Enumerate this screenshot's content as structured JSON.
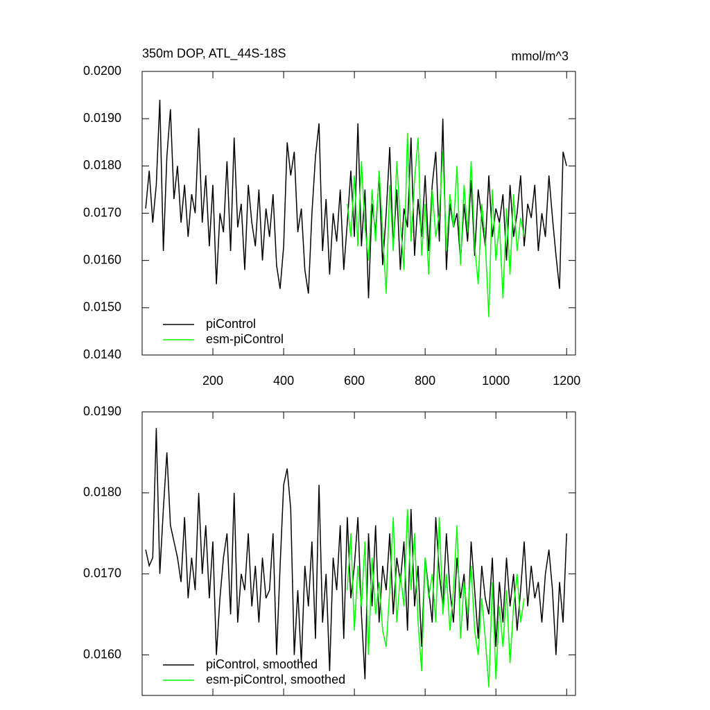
{
  "chart_data": [
    {
      "type": "line",
      "title": "350m DOP, ATL_44S-18S",
      "units": "mmol/m^3",
      "xlim": [
        0,
        1225
      ],
      "xticks": [
        200,
        400,
        600,
        800,
        1000,
        1200
      ],
      "ylim": [
        0.014,
        0.02
      ],
      "yticks": [
        {
          "value": 0.014,
          "label": "0.0140"
        },
        {
          "value": 0.015,
          "label": "0.0150"
        },
        {
          "value": 0.016,
          "label": "0.0160"
        },
        {
          "value": 0.017,
          "label": "0.0170"
        },
        {
          "value": 0.018,
          "label": "0.0180"
        },
        {
          "value": 0.019,
          "label": "0.0190"
        },
        {
          "value": 0.02,
          "label": "0.0200"
        }
      ],
      "legend": "lower left",
      "series": [
        {
          "name": "piControl",
          "color": "#000000",
          "x": [
            10,
            20,
            30,
            40,
            50,
            60,
            70,
            80,
            90,
            100,
            110,
            120,
            130,
            140,
            150,
            160,
            170,
            180,
            190,
            200,
            210,
            220,
            230,
            240,
            250,
            260,
            270,
            280,
            290,
            300,
            310,
            320,
            330,
            340,
            350,
            360,
            370,
            380,
            390,
            400,
            410,
            420,
            430,
            440,
            450,
            460,
            470,
            480,
            490,
            500,
            510,
            520,
            530,
            540,
            550,
            560,
            570,
            580,
            590,
            600,
            610,
            620,
            630,
            640,
            650,
            660,
            670,
            680,
            690,
            700,
            710,
            720,
            730,
            740,
            750,
            760,
            770,
            780,
            790,
            800,
            810,
            820,
            830,
            840,
            850,
            860,
            870,
            880,
            890,
            900,
            910,
            920,
            930,
            940,
            950,
            960,
            970,
            980,
            990,
            1000,
            1010,
            1020,
            1030,
            1040,
            1050,
            1060,
            1070,
            1080,
            1090,
            1100,
            1110,
            1120,
            1130,
            1140,
            1150,
            1160,
            1170,
            1180,
            1190,
            1200
          ],
          "values": [
            0.0171,
            0.0179,
            0.0168,
            0.0176,
            0.0194,
            0.0162,
            0.0182,
            0.0192,
            0.0173,
            0.018,
            0.0168,
            0.0176,
            0.0165,
            0.0174,
            0.017,
            0.0188,
            0.0168,
            0.0178,
            0.0163,
            0.0176,
            0.0155,
            0.017,
            0.0166,
            0.0181,
            0.0162,
            0.0186,
            0.0167,
            0.0172,
            0.0158,
            0.0176,
            0.0168,
            0.0163,
            0.0175,
            0.016,
            0.0171,
            0.0165,
            0.0174,
            0.0159,
            0.0154,
            0.0163,
            0.0185,
            0.0178,
            0.0183,
            0.0166,
            0.0171,
            0.0158,
            0.0153,
            0.017,
            0.0182,
            0.0189,
            0.0162,
            0.0173,
            0.0157,
            0.017,
            0.0164,
            0.0175,
            0.0158,
            0.0168,
            0.0179,
            0.0165,
            0.0189,
            0.0163,
            0.0175,
            0.0152,
            0.0172,
            0.0166,
            0.0178,
            0.0159,
            0.017,
            0.0184,
            0.0163,
            0.0175,
            0.0158,
            0.0171,
            0.0167,
            0.0186,
            0.0161,
            0.0173,
            0.0165,
            0.0178,
            0.0162,
            0.0176,
            0.0183,
            0.0164,
            0.019,
            0.0158,
            0.0172,
            0.0167,
            0.017,
            0.016,
            0.0172,
            0.0164,
            0.0177,
            0.0161,
            0.0175,
            0.0169,
            0.0163,
            0.0178,
            0.0165,
            0.0171,
            0.0168,
            0.0174,
            0.016,
            0.0176,
            0.0165,
            0.017,
            0.0178,
            0.0163,
            0.0172,
            0.0169,
            0.0176,
            0.0162,
            0.017,
            0.0165,
            0.0178,
            0.0169,
            0.0161,
            0.0154,
            0.0183,
            0.018
          ]
        },
        {
          "name": "esm-piControl",
          "color": "#00ff00",
          "x": [
            580,
            590,
            600,
            610,
            620,
            630,
            640,
            650,
            660,
            670,
            680,
            690,
            700,
            710,
            720,
            730,
            740,
            750,
            760,
            770,
            780,
            790,
            800,
            810,
            820,
            830,
            840,
            850,
            860,
            870,
            880,
            890,
            900,
            910,
            920,
            930,
            940,
            950,
            960,
            970,
            980,
            990,
            1000,
            1010,
            1020,
            1030,
            1040,
            1050,
            1060,
            1070,
            1080
          ],
          "values": [
            0.0172,
            0.0165,
            0.0178,
            0.0163,
            0.0181,
            0.0167,
            0.016,
            0.0175,
            0.0164,
            0.0179,
            0.0166,
            0.0153,
            0.0176,
            0.0162,
            0.0181,
            0.0168,
            0.0158,
            0.0187,
            0.0164,
            0.0177,
            0.0186,
            0.0161,
            0.0172,
            0.0157,
            0.0175,
            0.0165,
            0.017,
            0.0183,
            0.0162,
            0.0174,
            0.0167,
            0.018,
            0.0159,
            0.0176,
            0.0166,
            0.0181,
            0.0163,
            0.0155,
            0.0172,
            0.0164,
            0.0148,
            0.0175,
            0.016,
            0.0168,
            0.0152,
            0.0171,
            0.0157,
            0.0174,
            0.0162,
            0.0169,
            0.0165
          ]
        }
      ]
    },
    {
      "type": "line",
      "xlim": [
        0,
        1225
      ],
      "ylim": [
        0.0155,
        0.019
      ],
      "yticks": [
        {
          "value": 0.016,
          "label": "0.0160"
        },
        {
          "value": 0.017,
          "label": "0.0170"
        },
        {
          "value": 0.018,
          "label": "0.0180"
        },
        {
          "value": 0.019,
          "label": "0.0190"
        }
      ],
      "legend": "lower left",
      "series": [
        {
          "name": "piControl, smoothed",
          "color": "#000000",
          "x": [
            10,
            20,
            30,
            40,
            50,
            60,
            70,
            80,
            90,
            100,
            110,
            120,
            130,
            140,
            150,
            160,
            170,
            180,
            190,
            200,
            210,
            220,
            230,
            240,
            250,
            260,
            270,
            280,
            290,
            300,
            310,
            320,
            330,
            340,
            350,
            360,
            370,
            380,
            390,
            400,
            410,
            420,
            430,
            440,
            450,
            460,
            470,
            480,
            490,
            500,
            510,
            520,
            530,
            540,
            550,
            560,
            570,
            580,
            590,
            600,
            610,
            620,
            630,
            640,
            650,
            660,
            670,
            680,
            690,
            700,
            710,
            720,
            730,
            740,
            750,
            760,
            770,
            780,
            790,
            800,
            810,
            820,
            830,
            840,
            850,
            860,
            870,
            880,
            890,
            900,
            910,
            920,
            930,
            940,
            950,
            960,
            970,
            980,
            990,
            1000,
            1010,
            1020,
            1030,
            1040,
            1050,
            1060,
            1070,
            1080,
            1090,
            1100,
            1110,
            1120,
            1130,
            1140,
            1150,
            1160,
            1170,
            1180,
            1190,
            1200
          ],
          "values": [
            0.0173,
            0.0171,
            0.0172,
            0.0188,
            0.017,
            0.0178,
            0.0185,
            0.0176,
            0.0174,
            0.0172,
            0.0169,
            0.0177,
            0.0167,
            0.0172,
            0.0168,
            0.018,
            0.017,
            0.0176,
            0.0167,
            0.0174,
            0.016,
            0.0167,
            0.0172,
            0.0175,
            0.0165,
            0.018,
            0.0164,
            0.017,
            0.0168,
            0.0175,
            0.0166,
            0.0171,
            0.0164,
            0.0172,
            0.0167,
            0.0168,
            0.0175,
            0.016,
            0.0171,
            0.0181,
            0.0183,
            0.0178,
            0.016,
            0.0168,
            0.0159,
            0.0171,
            0.0166,
            0.0174,
            0.0162,
            0.0181,
            0.0164,
            0.017,
            0.0158,
            0.0172,
            0.0168,
            0.0176,
            0.0162,
            0.0177,
            0.0167,
            0.0171,
            0.0177,
            0.0165,
            0.0157,
            0.0175,
            0.0166,
            0.0176,
            0.0164,
            0.0171,
            0.0168,
            0.0175,
            0.0165,
            0.0172,
            0.0169,
            0.0174,
            0.0163,
            0.0178,
            0.0166,
            0.0171,
            0.0161,
            0.0172,
            0.0168,
            0.0164,
            0.0177,
            0.017,
            0.0166,
            0.0175,
            0.0168,
            0.0164,
            0.0172,
            0.0167,
            0.017,
            0.0163,
            0.0174,
            0.0168,
            0.0162,
            0.0171,
            0.0167,
            0.0165,
            0.0172,
            0.0161,
            0.0169,
            0.0164,
            0.0172,
            0.0166,
            0.017,
            0.0163,
            0.0168,
            0.0174,
            0.0166,
            0.0171,
            0.0167,
            0.0169,
            0.0164,
            0.017,
            0.0173,
            0.0168,
            0.016,
            0.0169,
            0.0164,
            0.0175
          ]
        },
        {
          "name": "esm-piControl, smoothed",
          "color": "#00ff00",
          "x": [
            580,
            590,
            600,
            610,
            620,
            630,
            640,
            650,
            660,
            670,
            680,
            690,
            700,
            710,
            720,
            730,
            740,
            750,
            760,
            770,
            780,
            790,
            800,
            810,
            820,
            830,
            840,
            850,
            860,
            870,
            880,
            890,
            900,
            910,
            920,
            930,
            940,
            950,
            960,
            970,
            980,
            990,
            1000,
            1010,
            1020,
            1030,
            1040,
            1050,
            1060,
            1070,
            1080
          ],
          "values": [
            0.0168,
            0.0175,
            0.0163,
            0.0171,
            0.0166,
            0.0174,
            0.016,
            0.0172,
            0.0165,
            0.0169,
            0.0163,
            0.0161,
            0.0168,
            0.0177,
            0.0164,
            0.017,
            0.0166,
            0.0178,
            0.0168,
            0.0175,
            0.0164,
            0.0158,
            0.0172,
            0.0167,
            0.017,
            0.0164,
            0.0177,
            0.0165,
            0.017,
            0.0163,
            0.0168,
            0.0176,
            0.0162,
            0.0169,
            0.0165,
            0.0171,
            0.0163,
            0.016,
            0.0167,
            0.0162,
            0.0156,
            0.0169,
            0.0157,
            0.0166,
            0.0161,
            0.0168,
            0.0159,
            0.0166,
            0.017,
            0.0164,
            0.0167
          ]
        }
      ]
    }
  ]
}
